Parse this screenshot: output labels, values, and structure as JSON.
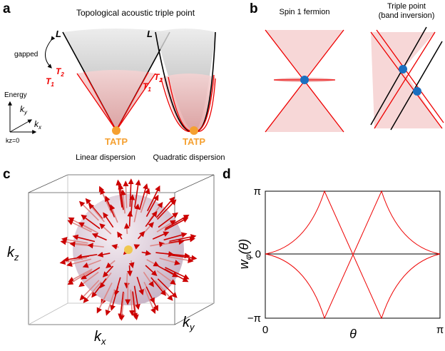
{
  "panel_a": {
    "letter": "a",
    "title": "Topological acoustic triple point",
    "L": "L",
    "gapped": "gapped",
    "T2": {
      "main": "T",
      "sub": "2"
    },
    "T1": {
      "main": "T",
      "sub": "1"
    },
    "energy": "Energy",
    "ky": {
      "main": "k",
      "sub": "y"
    },
    "kx": {
      "main": "k",
      "sub": "x"
    },
    "kz0": "kz=0",
    "tatp": "TATP",
    "left_caption": "Linear dispersion",
    "right_caption": "Quadratic dispersion"
  },
  "panel_b": {
    "letter": "b",
    "left_caption": "Spin 1 fermion",
    "right_caption_1": "Triple point",
    "right_caption_2": "(band inversion)"
  },
  "panel_c": {
    "letter": "c",
    "kz": {
      "main": "k",
      "sub": "z"
    },
    "kx": {
      "main": "k",
      "sub": "x"
    },
    "ky": {
      "main": "k",
      "sub": "y"
    }
  },
  "panel_d": {
    "letter": "d",
    "ylabel": {
      "main": "w",
      "sub": "φ",
      "arg": "(θ)"
    },
    "xlabel": "θ",
    "yticks": [
      "π",
      "0",
      "−π"
    ],
    "xticks": [
      "0",
      "π"
    ]
  }
}
